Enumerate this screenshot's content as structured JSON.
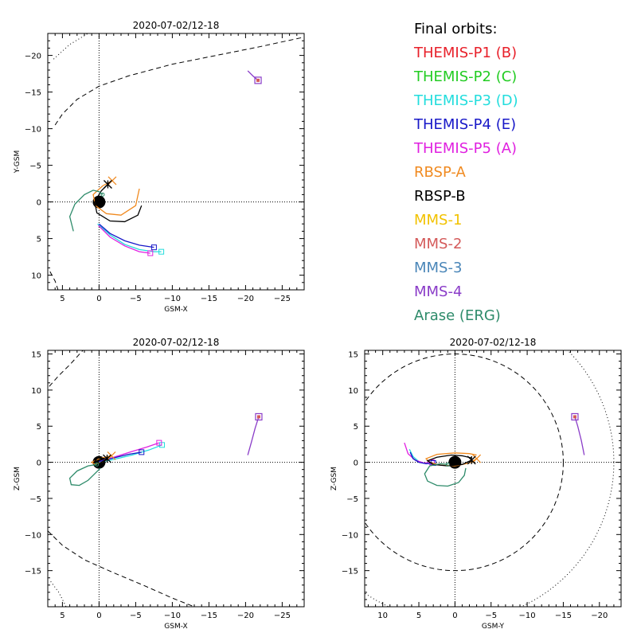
{
  "legend": {
    "title": "Final orbits:",
    "items": [
      {
        "label": "THEMIS-P1 (B)",
        "color": "#e8202a"
      },
      {
        "label": "THEMIS-P2 (C)",
        "color": "#22cc22"
      },
      {
        "label": "THEMIS-P3 (D)",
        "color": "#22dddd"
      },
      {
        "label": "THEMIS-P4 (E)",
        "color": "#1818c8"
      },
      {
        "label": "THEMIS-P5 (A)",
        "color": "#e020e0"
      },
      {
        "label": "RBSP-A",
        "color": "#f08a20"
      },
      {
        "label": "RBSP-B",
        "color": "#000000"
      },
      {
        "label": "MMS-1",
        "color": "#f2c200"
      },
      {
        "label": "MMS-2",
        "color": "#d45a5a"
      },
      {
        "label": "MMS-3",
        "color": "#4a86b8"
      },
      {
        "label": "MMS-4",
        "color": "#8a3cc8"
      },
      {
        "label": "Arase (ERG)",
        "color": "#2e8b6a"
      }
    ]
  },
  "chart_data": [
    {
      "type": "line",
      "title": "2020-07-02/12-18",
      "xlabel": "GSM-X",
      "ylabel": "Y-GSM",
      "xlim": [
        7,
        -28
      ],
      "ylim": [
        12,
        -23
      ],
      "xticks": [
        5,
        0,
        -5,
        -10,
        -15,
        -20,
        -25
      ],
      "yticks": [
        10,
        5,
        0,
        -5,
        -10,
        -15,
        -20
      ],
      "series": [
        {
          "name": "THEMIS-P3 (D)",
          "x": [
            0.2,
            -1.5,
            -3.5,
            -5.5,
            -7.5,
            -8.5
          ],
          "y": [
            3.0,
            4.5,
            5.8,
            6.5,
            6.8,
            6.8
          ]
        },
        {
          "name": "THEMIS-P5 (A)",
          "x": [
            0.1,
            -1.5,
            -3.5,
            -5.5,
            -7.0
          ],
          "y": [
            3.2,
            4.8,
            6.0,
            6.8,
            7.0
          ]
        },
        {
          "name": "THEMIS-P4 (E)",
          "x": [
            0.0,
            -1.5,
            -3.5,
            -5.5,
            -7.5
          ],
          "y": [
            3.0,
            4.3,
            5.3,
            5.9,
            6.2
          ]
        },
        {
          "name": "RBSP-A",
          "x": [
            -5.5,
            -5.0,
            -3.0,
            -1.0,
            0.5,
            0.8,
            -0.5,
            -1.8
          ],
          "y": [
            -1.8,
            0.5,
            1.8,
            1.6,
            0.5,
            -1.0,
            -2.2,
            -2.9
          ]
        },
        {
          "name": "RBSP-B",
          "x": [
            -5.8,
            -5.3,
            -3.5,
            -1.5,
            0.3,
            0.6,
            -0.3,
            -1.2
          ],
          "y": [
            0.5,
            1.8,
            2.7,
            2.6,
            1.5,
            0.0,
            -1.5,
            -2.4
          ]
        },
        {
          "name": "Arase (ERG)",
          "x": [
            3.5,
            4.0,
            3.3,
            2.0,
            0.8,
            0.0,
            -0.5
          ],
          "y": [
            4.0,
            2.0,
            0.3,
            -1.0,
            -1.6,
            -1.4,
            -1.0
          ]
        },
        {
          "name": "MMS-4",
          "x": [
            -20.3,
            -21.0,
            -21.7
          ],
          "y": [
            -17.9,
            -17.2,
            -16.6
          ]
        }
      ],
      "reference_lines": [
        {
          "name": "magnetopause",
          "style": "dashed",
          "x": [
            6,
            5,
            3,
            0,
            -4,
            -10,
            -16,
            -22,
            -28
          ],
          "y": [
            -10.5,
            -12,
            -14,
            -15.8,
            -17.2,
            -18.8,
            -20.0,
            -21.2,
            -22.5
          ]
        },
        {
          "name": "magnetopause-lower",
          "style": "dashed",
          "x": [
            6.7,
            6.0,
            5.6
          ],
          "y": [
            9.5,
            10.8,
            12
          ]
        },
        {
          "name": "bow-shock",
          "style": "dotted",
          "x": [
            6.2,
            4.0,
            1.5
          ],
          "y": [
            -19.5,
            -21.5,
            -23
          ]
        }
      ]
    },
    {
      "type": "line",
      "title": "2020-07-02/12-18",
      "xlabel": "GSM-X",
      "ylabel": "Z-GSM",
      "xlim": [
        7,
        -28
      ],
      "ylim": [
        -20,
        15.5
      ],
      "xticks": [
        5,
        0,
        -5,
        -10,
        -15,
        -20,
        -25
      ],
      "yticks": [
        -15,
        -10,
        -5,
        0,
        5,
        10,
        15
      ],
      "series": [
        {
          "name": "THEMIS-P3 (D)",
          "x": [
            0.0,
            -2.0,
            -4.5,
            -6.8,
            -8.6
          ],
          "y": [
            0.0,
            0.4,
            1.0,
            1.7,
            2.4
          ]
        },
        {
          "name": "THEMIS-P5 (A)",
          "x": [
            0.0,
            -2.0,
            -4.5,
            -6.5,
            -8.2
          ],
          "y": [
            0.1,
            0.7,
            1.5,
            2.1,
            2.7
          ]
        },
        {
          "name": "THEMIS-P4 (E)",
          "x": [
            0.0,
            -2.0,
            -4.0,
            -5.8
          ],
          "y": [
            0.1,
            0.6,
            1.1,
            1.4
          ]
        },
        {
          "name": "RBSP-A",
          "x": [
            -1.7,
            -0.8,
            0.5,
            1.0,
            0.0,
            -1.7
          ],
          "y": [
            0.9,
            0.2,
            -0.3,
            0.0,
            0.5,
            0.9
          ]
        },
        {
          "name": "RBSP-B",
          "x": [
            -1.1,
            0.0,
            0.7,
            0.2,
            -1.1
          ],
          "y": [
            0.5,
            -0.2,
            0.0,
            0.6,
            0.5
          ]
        },
        {
          "name": "Arase (ERG)",
          "x": [
            -0.2,
            0.5,
            1.5,
            2.7,
            3.8,
            4.0,
            3.0,
            1.5,
            0.3
          ],
          "y": [
            -0.8,
            -1.5,
            -2.5,
            -3.2,
            -3.1,
            -2.2,
            -1.2,
            -0.5,
            -0.3
          ]
        },
        {
          "name": "MMS-4",
          "x": [
            -20.3,
            -20.8,
            -21.3,
            -21.8
          ],
          "y": [
            1.0,
            2.8,
            4.7,
            6.3
          ]
        }
      ],
      "reference_lines": [
        {
          "name": "magnetopause-upper",
          "style": "dashed",
          "x": [
            6.8,
            5.5,
            4.0,
            2.2
          ],
          "y": [
            10.5,
            12.0,
            13.5,
            15.5
          ]
        },
        {
          "name": "magnetopause-lower",
          "style": "dashed",
          "x": [
            7.0,
            5.0,
            2.0,
            -2.0,
            -6.0,
            -10.0,
            -13.0
          ],
          "y": [
            -9.5,
            -11.5,
            -13.5,
            -15.3,
            -17.0,
            -18.8,
            -20
          ]
        },
        {
          "name": "bow-shock",
          "style": "dotted",
          "x": [
            6.6,
            5.5,
            4.5
          ],
          "y": [
            -16.5,
            -18.0,
            -20
          ]
        }
      ]
    },
    {
      "type": "line",
      "title": "2020-07-02/12-18",
      "xlabel": "GSM-Y",
      "ylabel": "Z-GSM",
      "xlim": [
        12.5,
        -23
      ],
      "ylim": [
        -20,
        15.5
      ],
      "xticks": [
        10,
        5,
        0,
        -5,
        -10,
        -15,
        -20
      ],
      "yticks": [
        -15,
        -10,
        -5,
        0,
        5,
        10,
        15
      ],
      "series": [
        {
          "name": "THEMIS-P3 (D)",
          "x": [
            6.3,
            5.8,
            5.0,
            4.0,
            3.0
          ],
          "y": [
            1.8,
            0.8,
            0.1,
            -0.2,
            -0.1
          ]
        },
        {
          "name": "THEMIS-P5 (A)",
          "x": [
            7.0,
            6.5,
            5.5,
            4.3,
            3.2
          ],
          "y": [
            2.7,
            1.2,
            0.3,
            -0.1,
            0.0
          ]
        },
        {
          "name": "THEMIS-P4 (E)",
          "x": [
            6.2,
            5.8,
            5.0,
            4.0,
            3.0
          ],
          "y": [
            1.4,
            0.5,
            0.0,
            -0.2,
            -0.1
          ]
        },
        {
          "name": "RBSP-A",
          "x": [
            -3.0,
            -2.0,
            0.0,
            2.5,
            4.0,
            3.5,
            2.0,
            0.0,
            -2.0,
            -3.0
          ],
          "y": [
            1.0,
            1.2,
            1.3,
            1.1,
            0.5,
            0.0,
            -0.4,
            -0.5,
            -0.1,
            0.5
          ]
        },
        {
          "name": "RBSP-B",
          "x": [
            -2.3,
            -1.0,
            0.5,
            2.5,
            3.8,
            3.0,
            1.0,
            -1.0,
            -2.3
          ],
          "y": [
            0.6,
            0.9,
            1.0,
            0.7,
            0.2,
            -0.3,
            -0.5,
            -0.3,
            0.3
          ]
        },
        {
          "name": "Arase (ERG)",
          "x": [
            -1.5,
            -1.3,
            -0.5,
            1.0,
            2.5,
            3.8,
            4.2,
            3.5,
            2.0,
            1.0
          ],
          "y": [
            -0.8,
            -1.8,
            -2.8,
            -3.3,
            -3.2,
            -2.6,
            -1.6,
            -0.5,
            -0.2,
            -0.3
          ]
        },
        {
          "name": "MMS-4",
          "x": [
            -17.9,
            -17.5,
            -17.0,
            -16.6
          ],
          "y": [
            1.0,
            3.0,
            5.0,
            6.3
          ]
        }
      ],
      "reference_lines": [
        {
          "name": "magnetopause",
          "style": "dashed",
          "shape": "circle",
          "r": 15
        },
        {
          "name": "bow-shock",
          "style": "dotted",
          "shape": "circle",
          "r": 22
        }
      ]
    }
  ]
}
